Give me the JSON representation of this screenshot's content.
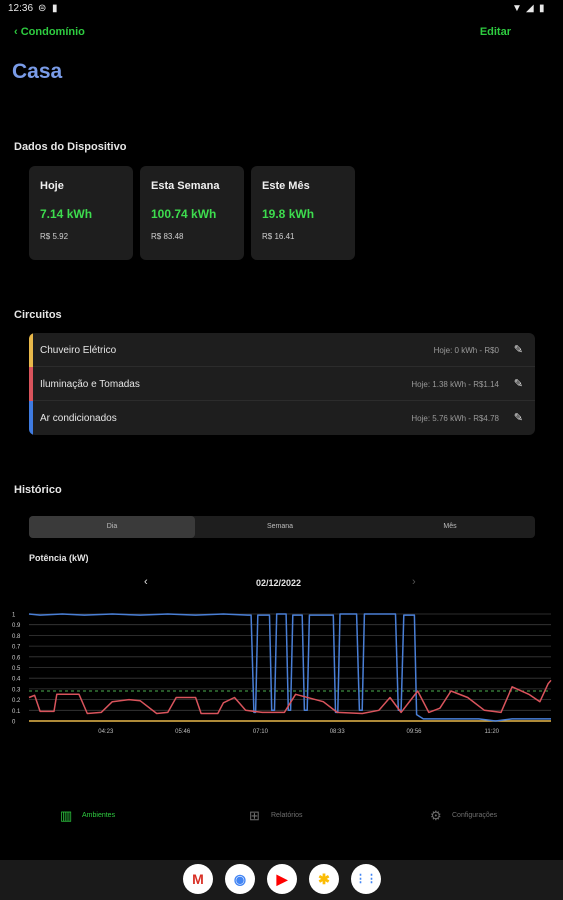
{
  "status": {
    "time": "12:36",
    "left_icons": [
      "sync-icon",
      "sim-icon"
    ],
    "right_icons": [
      "wifi-icon",
      "signal-icon",
      "battery-icon"
    ]
  },
  "topbar": {
    "back_label": "Condomínio",
    "edit_label": "Editar"
  },
  "page": {
    "title": "Casa"
  },
  "device": {
    "heading": "Dados do Dispositivo",
    "cards": [
      {
        "title": "Hoje",
        "kwh": "7.14 kWh",
        "cost": "R$  5.92"
      },
      {
        "title": "Esta Semana",
        "kwh": "100.74 kWh",
        "cost": "R$  83.48"
      },
      {
        "title": "Este Mês",
        "kwh": "19.8 kWh",
        "cost": "R$  16.41"
      }
    ]
  },
  "circuits": {
    "heading": "Circuitos",
    "items": [
      {
        "name": "Chuveiro Elétrico",
        "value": "Hoje: 0 kWh - R$0",
        "color": "#e8b84a"
      },
      {
        "name": "Iluminação e Tomadas",
        "value": "Hoje: 1.38 kWh - R$1.14",
        "color": "#d9545c"
      },
      {
        "name": "Ar condicionados",
        "value": "Hoje: 5.76 kWh - R$4.78",
        "color": "#3f7be0"
      }
    ]
  },
  "history": {
    "heading": "Histórico",
    "tabs": [
      "Dia",
      "Semana",
      "Mês"
    ],
    "active_tab": 0,
    "power_label": "Potência (kW)",
    "date": "02/12/2022",
    "prev_icon": "chevron-left-icon",
    "next_icon": "chevron-right-icon"
  },
  "chart_data": {
    "type": "line",
    "ylabel": "Potência (kW)",
    "ylim": [
      0,
      1
    ],
    "yticks": [
      "0",
      "0.1",
      "0.2",
      "0.3",
      "0.4",
      "0.5",
      "0.6",
      "0.7",
      "0.8",
      "0.9",
      "1"
    ],
    "xticks": [
      {
        "label": "04:23",
        "x": 4.383
      },
      {
        "label": "05:46",
        "x": 5.767
      },
      {
        "label": "07:10",
        "x": 7.167
      },
      {
        "label": "08:33",
        "x": 8.55
      },
      {
        "label": "09:56",
        "x": 9.933
      },
      {
        "label": "11:20",
        "x": 11.333
      }
    ],
    "xlim": [
      3.0,
      12.4
    ],
    "reference_line": {
      "y": 0.28,
      "color": "#4caf50",
      "dashed": true
    },
    "grid": true,
    "series": [
      {
        "color": "#e8b84a",
        "points": [
          [
            3.0,
            0.0
          ],
          [
            12.4,
            0.0
          ]
        ]
      },
      {
        "color": "#4a7fd6",
        "points": [
          [
            3.0,
            1.0
          ],
          [
            3.2,
            0.99
          ],
          [
            3.6,
            1.0
          ],
          [
            4.0,
            0.99
          ],
          [
            4.5,
            1.0
          ],
          [
            5.0,
            0.99
          ],
          [
            5.5,
            1.0
          ],
          [
            6.0,
            0.99
          ],
          [
            6.5,
            1.0
          ],
          [
            6.94,
            0.99
          ],
          [
            7.0,
            0.99
          ],
          [
            7.05,
            0.08
          ],
          [
            7.08,
            0.08
          ],
          [
            7.12,
            0.99
          ],
          [
            7.33,
            0.99
          ],
          [
            7.37,
            0.1
          ],
          [
            7.42,
            0.1
          ],
          [
            7.46,
            1.0
          ],
          [
            7.63,
            1.0
          ],
          [
            7.67,
            0.1
          ],
          [
            7.71,
            0.1
          ],
          [
            7.75,
            0.99
          ],
          [
            7.92,
            0.99
          ],
          [
            7.96,
            0.1
          ],
          [
            8.01,
            0.1
          ],
          [
            8.05,
            0.99
          ],
          [
            8.48,
            0.99
          ],
          [
            8.52,
            0.08
          ],
          [
            8.56,
            0.08
          ],
          [
            8.6,
            1.0
          ],
          [
            8.9,
            1.0
          ],
          [
            8.95,
            0.1
          ],
          [
            9.0,
            0.1
          ],
          [
            9.04,
            1.0
          ],
          [
            9.6,
            1.0
          ],
          [
            9.65,
            0.1
          ],
          [
            9.7,
            0.1
          ],
          [
            9.75,
            0.99
          ],
          [
            9.94,
            0.99
          ],
          [
            9.98,
            0.06
          ],
          [
            10.1,
            0.02
          ],
          [
            10.6,
            0.02
          ],
          [
            11.1,
            0.02
          ],
          [
            11.4,
            0.0
          ],
          [
            11.7,
            0.02
          ],
          [
            12.0,
            0.02
          ],
          [
            12.4,
            0.02
          ]
        ]
      },
      {
        "color": "#d9545c",
        "points": [
          [
            3.0,
            0.22
          ],
          [
            3.1,
            0.24
          ],
          [
            3.2,
            0.09
          ],
          [
            3.45,
            0.09
          ],
          [
            3.5,
            0.25
          ],
          [
            3.9,
            0.25
          ],
          [
            4.05,
            0.07
          ],
          [
            4.3,
            0.08
          ],
          [
            4.5,
            0.18
          ],
          [
            4.8,
            0.2
          ],
          [
            5.0,
            0.19
          ],
          [
            5.3,
            0.07
          ],
          [
            5.5,
            0.08
          ],
          [
            5.65,
            0.22
          ],
          [
            6.0,
            0.22
          ],
          [
            6.1,
            0.07
          ],
          [
            6.4,
            0.07
          ],
          [
            6.5,
            0.17
          ],
          [
            6.7,
            0.22
          ],
          [
            6.9,
            0.1
          ],
          [
            7.2,
            0.08
          ],
          [
            7.6,
            0.08
          ],
          [
            7.8,
            0.25
          ],
          [
            8.3,
            0.18
          ],
          [
            8.55,
            0.08
          ],
          [
            9.0,
            0.07
          ],
          [
            9.3,
            0.1
          ],
          [
            9.5,
            0.22
          ],
          [
            9.7,
            0.08
          ],
          [
            10.0,
            0.28
          ],
          [
            10.2,
            0.08
          ],
          [
            10.4,
            0.12
          ],
          [
            10.6,
            0.28
          ],
          [
            10.9,
            0.22
          ],
          [
            11.2,
            0.1
          ],
          [
            11.5,
            0.08
          ],
          [
            11.7,
            0.32
          ],
          [
            12.0,
            0.25
          ],
          [
            12.2,
            0.18
          ],
          [
            12.35,
            0.35
          ],
          [
            12.4,
            0.38
          ]
        ]
      }
    ]
  },
  "bottom_nav": {
    "items": [
      {
        "label": "Ambientes",
        "icon": "building-icon",
        "active": true
      },
      {
        "label": "Relatórios",
        "icon": "report-icon",
        "active": false
      },
      {
        "label": "Configurações",
        "icon": "gear-icon",
        "active": false
      }
    ],
    "active_color": "#2ecc40",
    "inactive_color": "#6f6f6f"
  },
  "dock": {
    "apps": [
      {
        "name": "gmail-icon",
        "glyph": "M",
        "color": "#d93025"
      },
      {
        "name": "chrome-icon",
        "glyph": "◉",
        "color": "#4285f4"
      },
      {
        "name": "youtube-icon",
        "glyph": "▶",
        "color": "#ff0000"
      },
      {
        "name": "photos-icon",
        "glyph": "✱",
        "color": "#fbbc04"
      },
      {
        "name": "app-drawer-icon",
        "glyph": "⋮⋮",
        "color": "#4285f4"
      }
    ]
  }
}
